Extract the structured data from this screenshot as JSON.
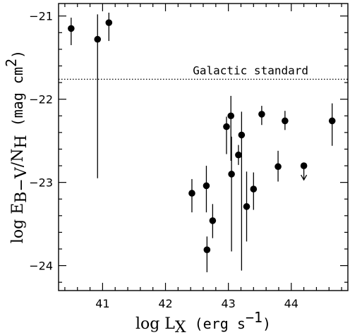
{
  "chart_data": {
    "type": "scatter",
    "title": "",
    "xlabel": {
      "prefix": "log L",
      "sub": "X",
      "units_open": "(erg s",
      "units_sup": "−1",
      "units_close": ")"
    },
    "ylabel": {
      "prefix": "log E",
      "sub": "B−V",
      "slash": "/N",
      "sub2": "H",
      "units_open": "(mag cm",
      "units_sup": "2",
      "units_close": ")"
    },
    "xlim": [
      40.3,
      44.9
    ],
    "ylim": [
      -24.3,
      -20.85
    ],
    "x_ticks": [
      41,
      42,
      43,
      44
    ],
    "x_tick_labels": [
      "41",
      "42",
      "43",
      "44"
    ],
    "y_ticks": [
      -21,
      -22,
      -23,
      -24
    ],
    "y_tick_labels": [
      "−21",
      "−22",
      "−23",
      "−24"
    ],
    "reference_line": {
      "y": -21.76,
      "label": "Galactic standard",
      "style": "dotted"
    },
    "points": [
      {
        "x": 40.5,
        "y": -21.15,
        "yerr_low": 0.2,
        "yerr_high": 0.13
      },
      {
        "x": 40.92,
        "y": -21.28,
        "yerr_low": 1.67,
        "yerr_high": 0.3
      },
      {
        "x": 41.1,
        "y": -21.08,
        "yerr_low": 0.22,
        "yerr_high": 0.12
      },
      {
        "x": 42.42,
        "y": -23.13,
        "yerr_low": 0.23,
        "yerr_high": 0.17
      },
      {
        "x": 42.65,
        "y": -23.04,
        "yerr_low": 0.32,
        "yerr_high": 0.24
      },
      {
        "x": 42.66,
        "y": -23.81,
        "yerr_low": 0.27,
        "yerr_high": 0.16
      },
      {
        "x": 42.75,
        "y": -23.46,
        "yerr_low": 0.21,
        "yerr_high": 0.2
      },
      {
        "x": 42.97,
        "y": -22.33,
        "yerr_low": 0.33,
        "yerr_high": 0.12
      },
      {
        "x": 43.04,
        "y": -22.2,
        "yerr_low": 0.54,
        "yerr_high": 0.24
      },
      {
        "x": 43.05,
        "y": -22.9,
        "yerr_low": 0.93,
        "yerr_high": 0.45
      },
      {
        "x": 43.16,
        "y": -22.67,
        "yerr_low": 0.12,
        "yerr_high": 0.12
      },
      {
        "x": 43.21,
        "y": -22.43,
        "yerr_low": 1.63,
        "yerr_high": 0.28
      },
      {
        "x": 43.29,
        "y": -23.29,
        "yerr_low": 0.42,
        "yerr_high": 0.42
      },
      {
        "x": 43.4,
        "y": -23.08,
        "yerr_low": 0.25,
        "yerr_high": 0.2
      },
      {
        "x": 43.53,
        "y": -22.18,
        "yerr_low": 0.13,
        "yerr_high": 0.1
      },
      {
        "x": 43.79,
        "y": -22.81,
        "yerr_low": 0.18,
        "yerr_high": 0.19
      },
      {
        "x": 43.9,
        "y": -22.26,
        "yerr_low": 0.11,
        "yerr_high": 0.12
      },
      {
        "x": 44.65,
        "y": -22.26,
        "yerr_low": 0.3,
        "yerr_high": 0.21
      }
    ],
    "upper_limits": [
      {
        "x": 44.2,
        "y": -22.8
      }
    ]
  }
}
